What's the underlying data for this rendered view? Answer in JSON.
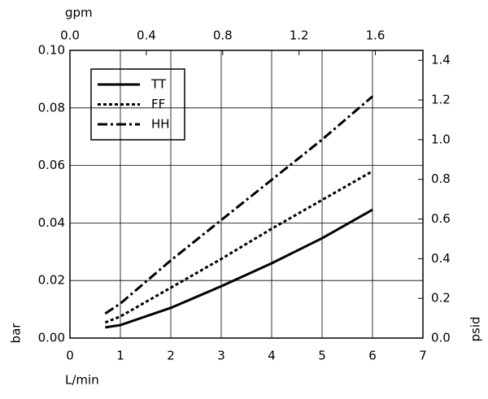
{
  "chart_data": {
    "type": "line",
    "x_label": "L/min",
    "x2_label": "gpm",
    "y_label": "bar",
    "y2_label": "psid",
    "x": [
      0.7,
      1,
      2,
      3,
      4,
      5,
      6
    ],
    "series": [
      {
        "name": "TT",
        "color": "#000000",
        "dash": "solid",
        "values": [
          0.0037,
          0.0045,
          0.0105,
          0.018,
          0.026,
          0.0347,
          0.0446
        ]
      },
      {
        "name": "FF",
        "color": "#000000",
        "dash": "dotted",
        "values": [
          0.0054,
          0.0075,
          0.0175,
          0.0275,
          0.038,
          0.048,
          0.058
        ]
      },
      {
        "name": "HH",
        "color": "#000000",
        "dash": "dashdot",
        "values": [
          0.0085,
          0.012,
          0.027,
          0.041,
          0.055,
          0.069,
          0.084
        ]
      }
    ],
    "xlim": [
      0,
      7
    ],
    "xticks": [
      0,
      1,
      2,
      3,
      4,
      5,
      6,
      7
    ],
    "x2lim": [
      0,
      1.849
    ],
    "x2ticks": [
      {
        "value": 0,
        "label": "0.0"
      },
      0.4,
      0.8,
      1.2,
      1.6
    ],
    "ylim": [
      0,
      0.1
    ],
    "yticks": [
      {
        "value": 0,
        "label": "0.00"
      },
      {
        "value": 0.02,
        "label": "0.02"
      },
      {
        "value": 0.04,
        "label": "0.04"
      },
      {
        "value": 0.06,
        "label": "0.06"
      },
      {
        "value": 0.08,
        "label": "0.08"
      },
      {
        "value": 0.1,
        "label": "0.10"
      }
    ],
    "y2lim": [
      0,
      1.45
    ],
    "y2ticks": [
      {
        "value": 0,
        "label": "0.0"
      },
      0.2,
      0.4,
      0.6,
      0.8,
      {
        "value": 1,
        "label": "1.0"
      },
      1.2,
      1.4
    ],
    "grid": true,
    "legend": "upper left"
  }
}
